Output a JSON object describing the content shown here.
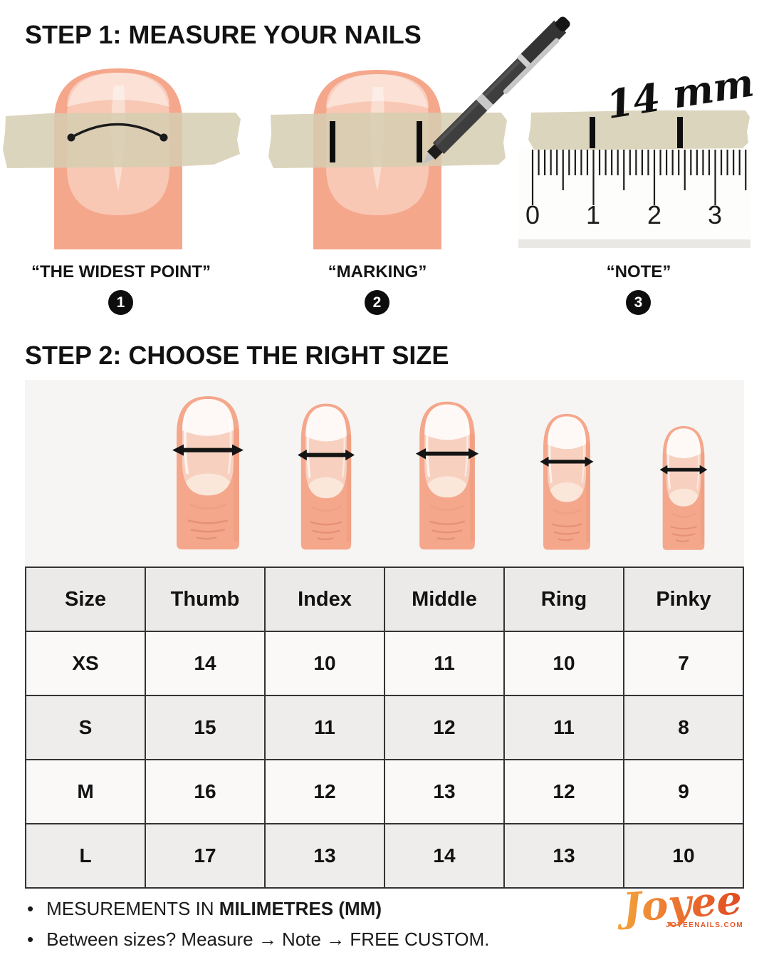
{
  "step1": {
    "title": "STEP 1: MEASURE YOUR NAILS",
    "figures": [
      {
        "caption": "“THE WIDEST POINT”",
        "number": "1"
      },
      {
        "caption": "“MARKING”",
        "number": "2"
      },
      {
        "caption": "“NOTE”",
        "number": "3"
      }
    ],
    "ruler": {
      "annotation": "14 mm",
      "tick_labels": [
        "0",
        "1",
        "2",
        "3"
      ]
    }
  },
  "step2": {
    "title": "STEP 2: CHOOSE THE RIGHT SIZE",
    "fingers": [
      "thumb",
      "index",
      "middle",
      "ring",
      "pinky"
    ]
  },
  "size_table": {
    "headers": [
      "Size",
      "Thumb",
      "Index",
      "Middle",
      "Ring",
      "Pinky"
    ],
    "rows": [
      {
        "size": "XS",
        "values": [
          "14",
          "10",
          "11",
          "10",
          "7"
        ]
      },
      {
        "size": "S",
        "values": [
          "15",
          "11",
          "12",
          "11",
          "8"
        ]
      },
      {
        "size": "M",
        "values": [
          "16",
          "12",
          "13",
          "12",
          "9"
        ]
      },
      {
        "size": "L",
        "values": [
          "17",
          "13",
          "14",
          "13",
          "10"
        ]
      }
    ],
    "unit": "mm"
  },
  "notes": [
    {
      "text": "MESUREMENTS IN ",
      "bold": "MILIMETRES (MM)"
    },
    {
      "text": "Between sizes? Measure → Note → FREE CUSTOM.",
      "bold": ""
    }
  ],
  "brand": {
    "name": "Joyee",
    "website": "JOYEENAILS.COM",
    "accent_from": "#F3A93C",
    "accent_to": "#E14A22"
  },
  "colors": {
    "skin": "#F5A78C",
    "nail_plate": "#F7D0BF",
    "tape": "#D6CEB2",
    "panel_background": "#F6F5F3",
    "table_border": "#343434"
  }
}
